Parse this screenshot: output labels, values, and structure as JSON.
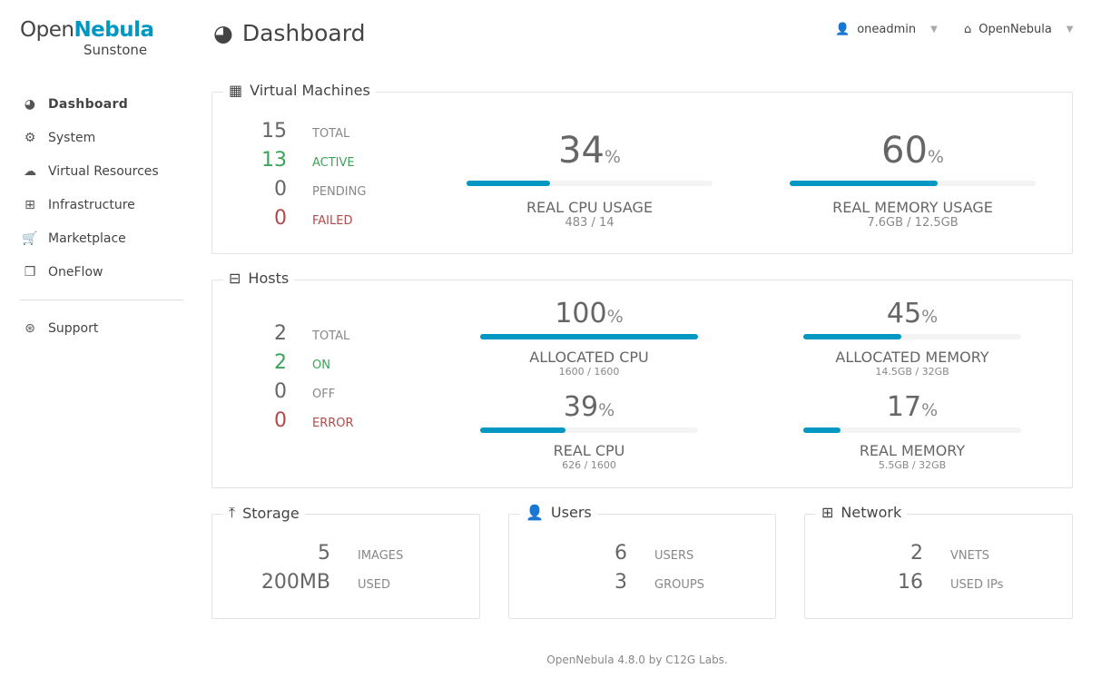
{
  "brand": {
    "open": "Open",
    "nebula": "Nebula",
    "sub": "Sunstone"
  },
  "header": {
    "title": "Dashboard",
    "user": "oneadmin",
    "zone": "OpenNebula"
  },
  "sidebar": {
    "items": [
      {
        "label": "Dashboard",
        "icon": "dashboard-icon"
      },
      {
        "label": "System",
        "icon": "gears-icon"
      },
      {
        "label": "Virtual Resources",
        "icon": "cloud-icon"
      },
      {
        "label": "Infrastructure",
        "icon": "sitemap-icon"
      },
      {
        "label": "Marketplace",
        "icon": "cart-icon"
      },
      {
        "label": "OneFlow",
        "icon": "cubes-icon"
      }
    ],
    "support": "Support"
  },
  "vms": {
    "title": "Virtual Machines",
    "stats": [
      {
        "n": "15",
        "l": "TOTAL"
      },
      {
        "n": "13",
        "l": "ACTIVE"
      },
      {
        "n": "0",
        "l": "PENDING"
      },
      {
        "n": "0",
        "l": "FAILED"
      }
    ],
    "cpu": {
      "pct": "34",
      "name": "REAL CPU USAGE",
      "val": "483 / 14"
    },
    "mem": {
      "pct": "60",
      "name": "REAL MEMORY USAGE",
      "val": "7.6GB / 12.5GB"
    }
  },
  "hosts": {
    "title": "Hosts",
    "stats": [
      {
        "n": "2",
        "l": "TOTAL"
      },
      {
        "n": "2",
        "l": "ON"
      },
      {
        "n": "0",
        "l": "OFF"
      },
      {
        "n": "0",
        "l": "ERROR"
      }
    ],
    "acpu": {
      "pct": "100",
      "name": "ALLOCATED CPU",
      "val": "1600 / 1600"
    },
    "amem": {
      "pct": "45",
      "name": "ALLOCATED MEMORY",
      "val": "14.5GB / 32GB"
    },
    "rcpu": {
      "pct": "39",
      "name": "REAL CPU",
      "val": "626 / 1600"
    },
    "rmem": {
      "pct": "17",
      "name": "REAL MEMORY",
      "val": "5.5GB / 32GB"
    }
  },
  "storage": {
    "title": "Storage",
    "stats": [
      {
        "n": "5",
        "l": "IMAGES"
      },
      {
        "n": "200MB",
        "l": "USED"
      }
    ]
  },
  "users": {
    "title": "Users",
    "stats": [
      {
        "n": "6",
        "l": "USERS"
      },
      {
        "n": "3",
        "l": "GROUPS"
      }
    ]
  },
  "network": {
    "title": "Network",
    "stats": [
      {
        "n": "2",
        "l": "VNETS"
      },
      {
        "n": "16",
        "l": "USED IPs"
      }
    ]
  },
  "percent_sign": "%",
  "footer": "OpenNebula 4.8.0 by C12G Labs.",
  "colors": {
    "accent": "#0098c3",
    "ok": "#3ca35a",
    "error": "#b04b4b"
  }
}
